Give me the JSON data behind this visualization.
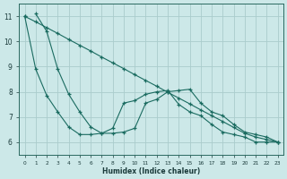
{
  "xlabel": "Humidex (Indice chaleur)",
  "bg_color": "#cce8e8",
  "grid_color": "#aacccc",
  "line_color": "#1a6b60",
  "xlim": [
    -0.5,
    23.5
  ],
  "ylim": [
    5.5,
    11.5
  ],
  "xticks": [
    0,
    1,
    2,
    3,
    4,
    5,
    6,
    7,
    8,
    9,
    10,
    11,
    12,
    13,
    14,
    15,
    16,
    17,
    18,
    19,
    20,
    21,
    22,
    23
  ],
  "yticks": [
    6,
    7,
    8,
    9,
    10,
    11
  ],
  "series": [
    {
      "x": [
        0,
        1,
        2,
        3,
        4,
        5,
        6,
        7,
        8,
        9,
        10,
        11,
        12,
        13,
        14,
        15,
        16,
        17,
        18,
        19,
        20,
        21,
        22,
        23
      ],
      "y": [
        11.0,
        10.78,
        10.55,
        10.32,
        10.08,
        9.85,
        9.62,
        9.38,
        9.15,
        8.92,
        8.68,
        8.45,
        8.22,
        7.98,
        7.75,
        7.52,
        7.28,
        7.05,
        6.82,
        6.58,
        6.35,
        6.2,
        6.1,
        6.0
      ]
    },
    {
      "x": [
        1,
        2,
        3,
        4,
        5,
        6,
        7,
        8,
        9,
        10,
        11,
        12,
        13,
        14,
        15,
        16,
        17,
        18,
        19,
        20,
        21,
        22,
        23
      ],
      "y": [
        11.1,
        10.4,
        8.9,
        7.9,
        7.2,
        6.6,
        6.35,
        6.35,
        6.4,
        6.55,
        7.55,
        7.7,
        8.0,
        8.05,
        8.1,
        7.55,
        7.2,
        7.05,
        6.7,
        6.4,
        6.3,
        6.2,
        6.0
      ]
    },
    {
      "x": [
        0,
        1,
        2,
        3,
        4,
        5,
        6,
        7,
        8,
        9,
        10,
        11,
        12,
        13,
        14,
        15,
        16,
        17,
        18,
        19,
        20,
        21,
        22,
        23
      ],
      "y": [
        11.0,
        8.9,
        7.85,
        7.2,
        6.6,
        6.3,
        6.3,
        6.35,
        6.55,
        7.55,
        7.65,
        7.9,
        8.0,
        8.05,
        7.5,
        7.2,
        7.05,
        6.7,
        6.4,
        6.3,
        6.2,
        6.0,
        6.0,
        6.0
      ]
    }
  ]
}
